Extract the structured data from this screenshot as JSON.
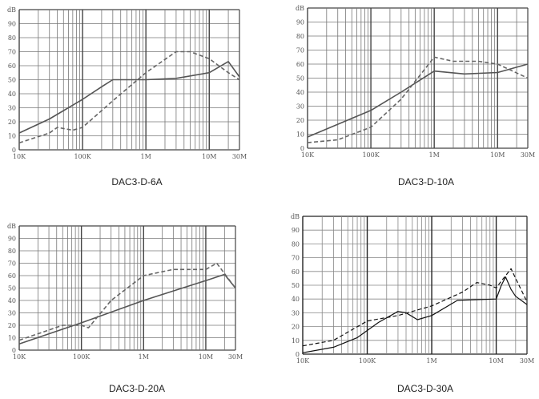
{
  "chart_data": [
    {
      "type": "line",
      "title": "DAC3-D-6A",
      "ylabel": "dB",
      "ylim": [
        0,
        100
      ],
      "xlim": [
        10000,
        30000000
      ],
      "x_scale": "log",
      "y_ticks": [
        "0",
        "10",
        "20",
        "30",
        "40",
        "50",
        "60",
        "70",
        "80",
        "90",
        "dB"
      ],
      "x_ticks": [
        {
          "label": "10K",
          "x": 10000
        },
        {
          "label": "100K",
          "x": 100000
        },
        {
          "label": "1M",
          "x": 1000000
        },
        {
          "label": "10M",
          "x": 10000000
        },
        {
          "label": "30M",
          "x": 30000000
        }
      ],
      "grid": true,
      "series": [
        {
          "style": "solid",
          "color": "#555555",
          "points": [
            [
              10000,
              12
            ],
            [
              30000,
              22
            ],
            [
              100000,
              36
            ],
            [
              200000,
              45
            ],
            [
              300000,
              50
            ],
            [
              1000000,
              50
            ],
            [
              3000000,
              51
            ],
            [
              10000000,
              55
            ],
            [
              20000000,
              63
            ],
            [
              30000000,
              52
            ]
          ]
        },
        {
          "style": "dashed",
          "color": "#666666",
          "points": [
            [
              10000,
              5
            ],
            [
              30000,
              12
            ],
            [
              40000,
              16
            ],
            [
              70000,
              14
            ],
            [
              100000,
              16
            ],
            [
              300000,
              35
            ],
            [
              1000000,
              55
            ],
            [
              3000000,
              70
            ],
            [
              5000000,
              70
            ],
            [
              10000000,
              65
            ],
            [
              20000000,
              55
            ],
            [
              30000000,
              50
            ]
          ]
        }
      ]
    },
    {
      "type": "line",
      "title": "DAC3-D-10A",
      "ylabel": "dB",
      "ylim": [
        0,
        100
      ],
      "xlim": [
        10000,
        30000000
      ],
      "x_scale": "log",
      "y_ticks": [
        "0",
        "10",
        "20",
        "30",
        "40",
        "50",
        "60",
        "70",
        "80",
        "90",
        "dB"
      ],
      "x_ticks": [
        {
          "label": "10K",
          "x": 10000
        },
        {
          "label": "100K",
          "x": 100000
        },
        {
          "label": "1M",
          "x": 1000000
        },
        {
          "label": "10M",
          "x": 10000000
        },
        {
          "label": "30M",
          "x": 30000000
        }
      ],
      "grid": true,
      "series": [
        {
          "style": "solid",
          "color": "#555555",
          "points": [
            [
              10000,
              8
            ],
            [
              100000,
              27
            ],
            [
              300000,
              40
            ],
            [
              1000000,
              55
            ],
            [
              3000000,
              53
            ],
            [
              10000000,
              54
            ],
            [
              30000000,
              60
            ]
          ]
        },
        {
          "style": "dashed",
          "color": "#666666",
          "points": [
            [
              10000,
              4
            ],
            [
              30000,
              6
            ],
            [
              100000,
              15
            ],
            [
              300000,
              35
            ],
            [
              1000000,
              65
            ],
            [
              2000000,
              62
            ],
            [
              5000000,
              62
            ],
            [
              10000000,
              60
            ],
            [
              30000000,
              50
            ]
          ]
        }
      ]
    },
    {
      "type": "line",
      "title": "DAC3-D-20A",
      "ylabel": "dB",
      "ylim": [
        0,
        100
      ],
      "xlim": [
        10000,
        30000000
      ],
      "x_scale": "log",
      "y_ticks": [
        "0",
        "10",
        "20",
        "30",
        "40",
        "50",
        "60",
        "70",
        "80",
        "90",
        "dB"
      ],
      "x_ticks": [
        {
          "label": "10K",
          "x": 10000
        },
        {
          "label": "100K",
          "x": 100000
        },
        {
          "label": "1M",
          "x": 1000000
        },
        {
          "label": "10M",
          "x": 10000000
        },
        {
          "label": "30M",
          "x": 30000000
        }
      ],
      "grid": true,
      "series": [
        {
          "style": "solid",
          "color": "#555555",
          "points": [
            [
              10000,
              5
            ],
            [
              100000,
              22
            ],
            [
              1000000,
              40
            ],
            [
              10000000,
              56
            ],
            [
              20000000,
              61
            ],
            [
              30000000,
              50
            ]
          ]
        },
        {
          "style": "dashed",
          "color": "#666666",
          "points": [
            [
              10000,
              8
            ],
            [
              50000,
              20
            ],
            [
              100000,
              20
            ],
            [
              130000,
              18
            ],
            [
              300000,
              40
            ],
            [
              1000000,
              60
            ],
            [
              3000000,
              65
            ],
            [
              10000000,
              65
            ],
            [
              15000000,
              70
            ],
            [
              30000000,
              50
            ]
          ]
        }
      ]
    },
    {
      "type": "line",
      "title": "DAC3-D-30A",
      "ylabel": "dB",
      "ylim": [
        0,
        100
      ],
      "xlim": [
        10000,
        30000000
      ],
      "x_scale": "log",
      "y_ticks": [
        "0",
        "10",
        "20",
        "30",
        "40",
        "50",
        "60",
        "70",
        "80",
        "90",
        "dB"
      ],
      "x_ticks": [
        {
          "label": "10K",
          "x": 10000
        },
        {
          "label": "100K",
          "x": 100000
        },
        {
          "label": "1M",
          "x": 1000000
        },
        {
          "label": "10M",
          "x": 10000000
        },
        {
          "label": "30M",
          "x": 30000000
        }
      ],
      "grid": true,
      "series": [
        {
          "style": "solid",
          "color": "#111111",
          "points": [
            [
              10000,
              1
            ],
            [
              30000,
              5
            ],
            [
              70000,
              12
            ],
            [
              150000,
              23
            ],
            [
              300000,
              31
            ],
            [
              400000,
              30
            ],
            [
              600000,
              25
            ],
            [
              1000000,
              28
            ],
            [
              2500000,
              39
            ],
            [
              10000000,
              40
            ],
            [
              12000000,
              50
            ],
            [
              14000000,
              56
            ],
            [
              17000000,
              47
            ],
            [
              20000000,
              42
            ],
            [
              30000000,
              36
            ]
          ]
        },
        {
          "style": "dashed",
          "color": "#111111",
          "points": [
            [
              10000,
              6
            ],
            [
              30000,
              10
            ],
            [
              100000,
              24
            ],
            [
              300000,
              28
            ],
            [
              1000000,
              35
            ],
            [
              3000000,
              45
            ],
            [
              5000000,
              52
            ],
            [
              8000000,
              50
            ],
            [
              10000000,
              48
            ],
            [
              12000000,
              53
            ],
            [
              17000000,
              62
            ],
            [
              20000000,
              55
            ],
            [
              30000000,
              38
            ]
          ]
        }
      ]
    }
  ]
}
